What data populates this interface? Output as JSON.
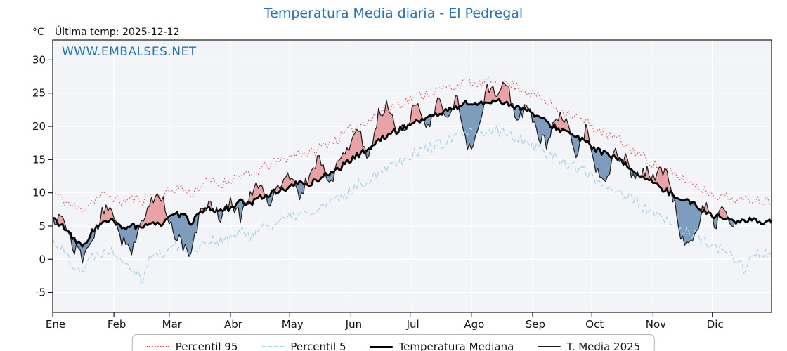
{
  "title": "Temperatura Media diaria - El Pedregal",
  "header": {
    "unit_label": "°C",
    "last_temp_label": "Última temp: 2025-12-12"
  },
  "watermark": "WWW.EMBALSES.NET",
  "colors": {
    "title": "#2273b8",
    "watermark": "#1f77b4",
    "percentil95": "#e04a4a",
    "percentil5": "#a9d6e8",
    "mediana": "#000000",
    "t_media_2025": "#1a1a1a",
    "fill_above": "rgba(226,96,96,0.55)",
    "fill_below": "rgba(74,119,165,0.70)",
    "plot_bg": "#f2f4f7",
    "grid": "#ffffff"
  },
  "legend": {
    "items": [
      {
        "label": "Percentil 95"
      },
      {
        "label": "Percentil 5"
      },
      {
        "label": "Temperatura Mediana"
      },
      {
        "label": "T. Media 2025"
      }
    ]
  },
  "chart_data": {
    "type": "line",
    "title": "Temperatura Media diaria - El Pedregal",
    "ylabel": "°C",
    "x_unit": "day_of_year",
    "ylim": [
      -8,
      33
    ],
    "yticks": [
      -5,
      0,
      5,
      10,
      15,
      20,
      25,
      30
    ],
    "months": [
      "Ene",
      "Feb",
      "Mar",
      "Abr",
      "May",
      "Jun",
      "Jul",
      "Ago",
      "Sep",
      "Oct",
      "Nov",
      "Dic"
    ],
    "month_start_days": [
      1,
      32,
      60,
      91,
      121,
      152,
      182,
      213,
      244,
      274,
      305,
      335
    ],
    "x": [
      1,
      6,
      11,
      16,
      21,
      26,
      31,
      36,
      41,
      46,
      51,
      56,
      61,
      66,
      71,
      76,
      81,
      86,
      91,
      96,
      101,
      106,
      111,
      116,
      121,
      126,
      131,
      136,
      141,
      146,
      151,
      156,
      161,
      166,
      171,
      176,
      181,
      186,
      191,
      196,
      201,
      206,
      211,
      216,
      221,
      226,
      231,
      236,
      241,
      246,
      251,
      256,
      261,
      266,
      271,
      276,
      281,
      286,
      291,
      296,
      301,
      306,
      311,
      316,
      321,
      326,
      331,
      336,
      341,
      346,
      351,
      356,
      361,
      365
    ],
    "series": [
      {
        "name": "Percentil 95",
        "color": "#e04a4a",
        "style": "dotted",
        "values": [
          10.2,
          9.0,
          8.0,
          7.4,
          8.8,
          9.6,
          9.4,
          8.6,
          9.2,
          8.8,
          10.0,
          9.4,
          10.4,
          10.8,
          9.8,
          11.2,
          11.8,
          11.2,
          12.0,
          12.8,
          12.4,
          13.6,
          14.2,
          14.8,
          15.4,
          16.2,
          15.8,
          16.8,
          17.6,
          18.2,
          19.4,
          20.2,
          21.0,
          22.0,
          22.8,
          23.4,
          24.0,
          24.6,
          25.0,
          25.4,
          25.8,
          26.2,
          26.6,
          26.2,
          26.6,
          27.0,
          26.4,
          26.0,
          25.4,
          24.6,
          23.6,
          22.8,
          22.2,
          21.4,
          20.6,
          19.6,
          18.8,
          18.2,
          17.2,
          16.2,
          15.2,
          14.2,
          13.4,
          12.6,
          12.0,
          11.2,
          10.4,
          9.8,
          9.4,
          9.0,
          8.8,
          9.2,
          8.8,
          9.0
        ]
      },
      {
        "name": "Percentil 5",
        "color": "#a9d6e8",
        "style": "dashed",
        "values": [
          3.0,
          1.4,
          -0.6,
          -1.8,
          0.4,
          1.2,
          1.4,
          0.2,
          -1.0,
          -3.0,
          0.8,
          0.6,
          1.8,
          2.2,
          1.0,
          2.4,
          3.0,
          2.6,
          3.2,
          4.0,
          3.6,
          4.8,
          5.2,
          5.8,
          6.2,
          7.0,
          6.6,
          7.6,
          8.4,
          9.0,
          10.2,
          11.2,
          12.0,
          13.2,
          14.2,
          14.8,
          15.6,
          16.2,
          16.8,
          17.2,
          17.8,
          18.4,
          19.0,
          18.6,
          19.0,
          19.4,
          18.8,
          18.4,
          17.8,
          17.0,
          16.0,
          15.2,
          14.6,
          13.8,
          13.0,
          12.0,
          11.2,
          10.6,
          9.6,
          8.6,
          7.6,
          6.6,
          5.8,
          5.0,
          4.4,
          3.6,
          2.6,
          2.0,
          1.0,
          0.2,
          -1.2,
          0.6,
          0.8,
          1.0
        ]
      },
      {
        "name": "Temperatura Mediana",
        "color": "#000000",
        "style": "thick",
        "values": [
          6.2,
          5.0,
          3.2,
          1.8,
          4.2,
          5.4,
          5.8,
          4.6,
          5.2,
          4.4,
          5.8,
          5.2,
          6.4,
          6.8,
          5.6,
          7.0,
          7.6,
          7.2,
          7.8,
          8.6,
          8.2,
          9.4,
          9.8,
          10.4,
          10.8,
          11.6,
          11.2,
          12.2,
          13.0,
          13.6,
          14.8,
          15.8,
          16.6,
          17.8,
          18.8,
          19.4,
          20.2,
          20.8,
          21.4,
          21.8,
          22.4,
          23.0,
          23.6,
          23.2,
          23.6,
          24.0,
          23.4,
          23.0,
          22.4,
          21.6,
          20.6,
          19.8,
          19.2,
          18.4,
          17.6,
          16.6,
          15.8,
          15.2,
          14.2,
          13.2,
          12.2,
          11.2,
          10.4,
          9.6,
          9.0,
          8.2,
          7.2,
          6.6,
          6.2,
          5.8,
          5.6,
          6.0,
          5.6,
          5.8
        ]
      },
      {
        "name": "T. Media 2025",
        "color": "#1a1a1a",
        "style": "thin",
        "values": [
          5.8,
          6.4,
          2.0,
          0.4,
          2.8,
          6.8,
          7.8,
          3.0,
          1.6,
          5.0,
          8.8,
          9.6,
          5.0,
          2.2,
          0.6,
          7.4,
          8.6,
          6.0,
          8.8,
          6.4,
          9.8,
          11.8,
          8.4,
          11.0,
          12.8,
          9.0,
          12.8,
          15.6,
          11.0,
          15.0,
          16.4,
          19.8,
          15.0,
          21.8,
          23.4,
          18.6,
          21.0,
          23.6,
          19.4,
          23.8,
          21.0,
          24.4,
          16.2,
          19.0,
          26.2,
          25.0,
          26.8,
          20.0,
          23.8,
          19.0,
          17.2,
          21.6,
          20.4,
          15.4,
          19.8,
          13.4,
          11.6,
          16.0,
          15.2,
          12.0,
          13.4,
          12.4,
          13.8,
          8.0,
          1.2,
          3.4,
          8.4,
          5.0,
          7.8,
          5.2,
          null,
          null,
          null,
          null
        ]
      }
    ],
    "fill_rule": "red where T. Media 2025 > Temperatura Mediana, blue where below",
    "grid": true,
    "legend_position": "bottom"
  }
}
